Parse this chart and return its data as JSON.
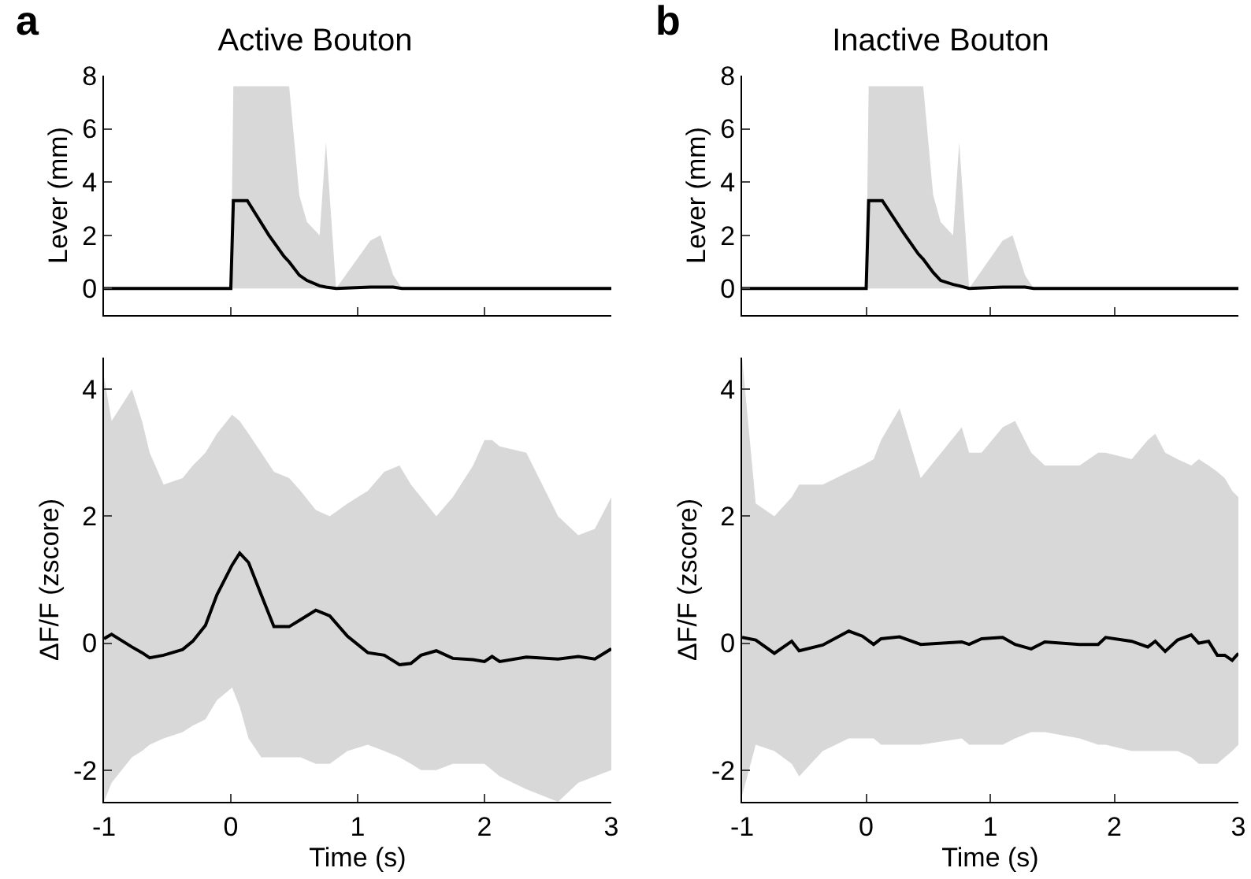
{
  "chart_data": [
    {
      "type": "line",
      "title": "Active Bouton",
      "annotations": [
        "a"
      ],
      "ylabel": "Lever (mm)",
      "xlim": [
        -1,
        3
      ],
      "xticks": [
        {
          "value": -1,
          "label": null
        },
        {
          "value": 0,
          "label": null
        },
        {
          "value": 1,
          "label": null
        },
        {
          "value": 2,
          "label": null
        },
        {
          "value": 3,
          "label": null
        }
      ],
      "ylim": [
        -1,
        8
      ],
      "yticks": [
        0,
        2,
        4,
        6,
        8
      ],
      "tick_labels": "y",
      "x": [
        -1,
        0,
        0.02,
        0.13,
        0.3,
        0.42,
        0.46,
        0.54,
        0.6,
        0.7,
        0.75,
        0.83,
        1.1,
        1.18,
        1.28,
        1.35,
        3
      ],
      "series": [
        {
          "color": "#000000",
          "values": [
            0,
            0,
            3.3,
            3.3,
            2.0,
            1.2,
            1.0,
            0.5,
            0.3,
            0.1,
            0.05,
            0,
            0.05,
            0.05,
            0.05,
            0,
            0
          ],
          "lower": [
            0,
            0,
            0,
            0,
            0,
            0,
            0,
            0,
            0,
            0,
            0,
            0,
            0,
            0,
            0,
            0,
            0
          ],
          "upper": [
            0,
            0,
            7.6,
            7.6,
            7.6,
            7.6,
            7.6,
            3.5,
            2.5,
            2.0,
            5.5,
            0,
            1.8,
            2.0,
            0.5,
            0,
            0
          ]
        }
      ]
    },
    {
      "type": "line",
      "title": "Inactive Bouton",
      "annotations": [
        "b"
      ],
      "ylabel": "Lever (mm)",
      "xlim": [
        -1,
        3
      ],
      "xticks": [
        {
          "value": -1,
          "label": null
        },
        {
          "value": 0,
          "label": null
        },
        {
          "value": 1,
          "label": null
        },
        {
          "value": 2,
          "label": null
        },
        {
          "value": 3,
          "label": null
        }
      ],
      "ylim": [
        -1,
        8
      ],
      "yticks": [
        0,
        2,
        4,
        6,
        8
      ],
      "tick_labels": "y",
      "x": [
        -1,
        0,
        0.02,
        0.13,
        0.3,
        0.42,
        0.46,
        0.54,
        0.6,
        0.7,
        0.75,
        0.83,
        1.1,
        1.18,
        1.28,
        1.35,
        3
      ],
      "series": [
        {
          "color": "#000000",
          "values": [
            0,
            0,
            3.3,
            3.3,
            2.1,
            1.3,
            1.1,
            0.6,
            0.3,
            0.15,
            0.1,
            0,
            0.05,
            0.05,
            0.05,
            0,
            0
          ],
          "lower": [
            0,
            0,
            0,
            0,
            0,
            0,
            0,
            0,
            0,
            0,
            0,
            0,
            0,
            0,
            0,
            0,
            0
          ],
          "upper": [
            0,
            0,
            7.6,
            7.6,
            7.6,
            7.6,
            7.6,
            3.5,
            2.5,
            2.0,
            5.5,
            0,
            1.8,
            2.0,
            0.5,
            0,
            0
          ]
        }
      ]
    },
    {
      "type": "line",
      "xlabel": "Time (s)",
      "ylabel": "ΔF/F (zscore)",
      "xlim": [
        -1,
        3
      ],
      "xticks": [
        -1,
        0,
        1,
        2,
        3
      ],
      "ylim": [
        -2.5,
        4.5
      ],
      "yticks": [
        -2,
        0,
        2,
        4
      ],
      "x": [
        -1,
        -0.94,
        -0.78,
        -0.7,
        -0.64,
        -0.53,
        -0.38,
        -0.3,
        -0.2,
        -0.11,
        0.01,
        0.07,
        0.14,
        0.24,
        0.34,
        0.46,
        0.55,
        0.67,
        0.78,
        0.92,
        1.08,
        1.21,
        1.33,
        1.42,
        1.5,
        1.62,
        1.75,
        1.91,
        2,
        2.06,
        2.12,
        2.33,
        2.58,
        2.74,
        2.87,
        3
      ],
      "series": [
        {
          "color": "#000000",
          "values": [
            0.07,
            0.14,
            -0.06,
            -0.15,
            -0.23,
            -0.19,
            -0.1,
            0.03,
            0.28,
            0.76,
            1.23,
            1.42,
            1.27,
            0.76,
            0.26,
            0.26,
            0.37,
            0.52,
            0.43,
            0.11,
            -0.15,
            -0.19,
            -0.34,
            -0.32,
            -0.19,
            -0.12,
            -0.24,
            -0.26,
            -0.29,
            -0.21,
            -0.29,
            -0.22,
            -0.25,
            -0.21,
            -0.25,
            -0.09
          ],
          "lower": [
            -2.5,
            -2.2,
            -1.8,
            -1.7,
            -1.6,
            -1.5,
            -1.4,
            -1.3,
            -1.2,
            -0.9,
            -0.7,
            -1.0,
            -1.5,
            -1.8,
            -1.8,
            -1.8,
            -1.8,
            -1.9,
            -1.9,
            -1.7,
            -1.6,
            -1.7,
            -1.8,
            -1.9,
            -2.0,
            -2.0,
            -1.9,
            -1.9,
            -1.9,
            -2.0,
            -2.1,
            -2.3,
            -2.5,
            -2.2,
            -2.1,
            -2.0
          ],
          "upper": [
            4.2,
            3.5,
            4.0,
            3.5,
            3.0,
            2.5,
            2.6,
            2.8,
            3.0,
            3.3,
            3.6,
            3.5,
            3.3,
            3.0,
            2.7,
            2.6,
            2.4,
            2.1,
            2.0,
            2.2,
            2.4,
            2.7,
            2.8,
            2.5,
            2.3,
            2.0,
            2.3,
            2.8,
            3.2,
            3.2,
            3.1,
            3.0,
            2.0,
            1.7,
            1.8,
            2.3
          ]
        }
      ]
    },
    {
      "type": "line",
      "xlabel": "Time (s)",
      "ylabel": "ΔF/F (zscore)",
      "xlim": [
        -1,
        3
      ],
      "xticks": [
        -1,
        0,
        1,
        2,
        3
      ],
      "ylim": [
        -2.5,
        4.5
      ],
      "yticks": [
        -2,
        0,
        2,
        4
      ],
      "x": [
        -1,
        -0.89,
        -0.74,
        -0.6,
        -0.54,
        -0.35,
        -0.14,
        -0.03,
        0.06,
        0.12,
        0.27,
        0.44,
        0.77,
        0.83,
        0.93,
        1.1,
        1.2,
        1.33,
        1.44,
        1.72,
        1.87,
        1.93,
        2.14,
        2.27,
        2.33,
        2.41,
        2.51,
        2.62,
        2.68,
        2.76,
        2.83,
        2.89,
        2.95,
        3
      ],
      "series": [
        {
          "color": "#000000",
          "values": [
            0.09,
            0.05,
            -0.16,
            0.03,
            -0.12,
            -0.03,
            0.19,
            0.11,
            -0.02,
            0.07,
            0.1,
            -0.02,
            0.02,
            -0.02,
            0.07,
            0.09,
            -0.02,
            -0.09,
            0.02,
            -0.02,
            -0.02,
            0.09,
            0.03,
            -0.06,
            0.03,
            -0.13,
            0.05,
            0.13,
            0,
            0.03,
            -0.19,
            -0.19,
            -0.27,
            -0.16
          ],
          "lower": [
            -2.4,
            -1.6,
            -1.7,
            -1.9,
            -2.1,
            -1.7,
            -1.5,
            -1.5,
            -1.5,
            -1.6,
            -1.6,
            -1.6,
            -1.5,
            -1.6,
            -1.6,
            -1.6,
            -1.5,
            -1.4,
            -1.4,
            -1.5,
            -1.6,
            -1.6,
            -1.7,
            -1.7,
            -1.7,
            -1.7,
            -1.7,
            -1.8,
            -1.9,
            -1.9,
            -1.9,
            -1.8,
            -1.7,
            -1.6
          ],
          "upper": [
            4.5,
            2.2,
            2.0,
            2.3,
            2.5,
            2.5,
            2.7,
            2.8,
            2.9,
            3.2,
            3.7,
            2.6,
            3.4,
            3.0,
            3.0,
            3.4,
            3.5,
            3.0,
            2.8,
            2.8,
            3.0,
            3.0,
            2.9,
            3.2,
            3.3,
            3.0,
            2.9,
            2.8,
            2.9,
            2.8,
            2.7,
            2.6,
            2.4,
            2.3
          ]
        }
      ]
    }
  ]
}
